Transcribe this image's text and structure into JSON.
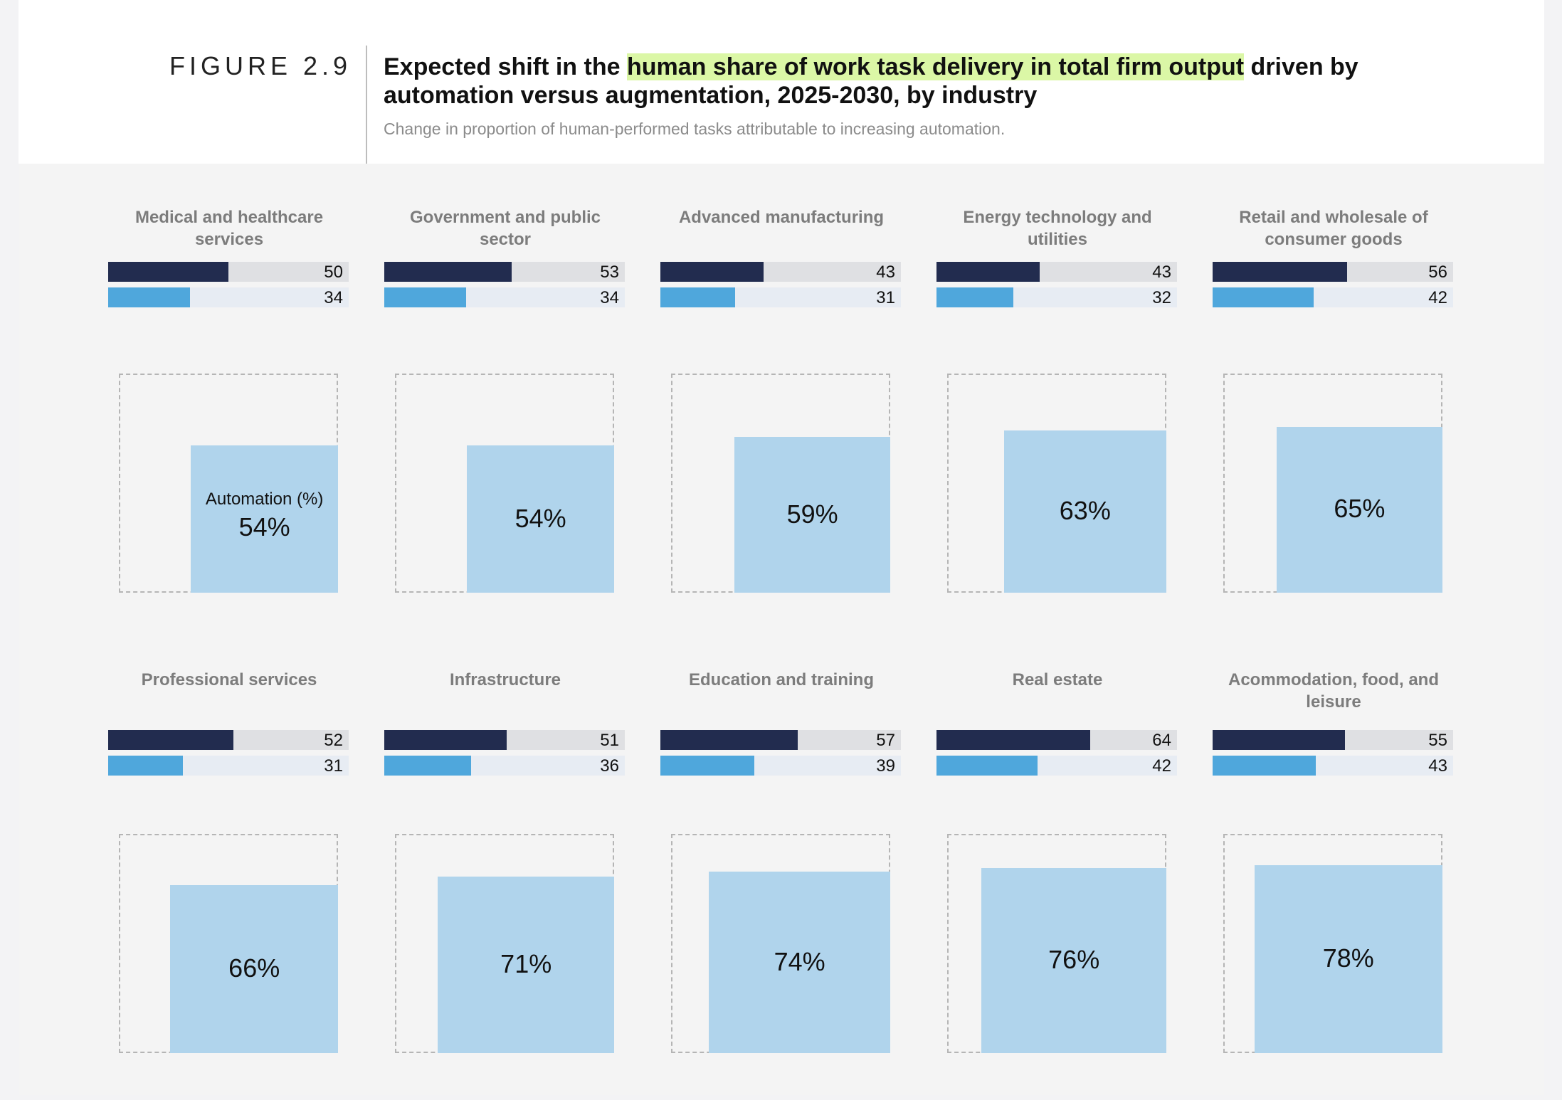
{
  "figure": {
    "label": "FIGURE 2.9",
    "title_before": "Expected shift in the ",
    "title_highlight": "human share of work task delivery in total firm output",
    "title_after": " driven by automation versus augmentation, 2025-2030, by industry",
    "subtitle": "Change in proportion of human-performed tasks attributable to increasing automation."
  },
  "colors": {
    "bar_dark": "#222c4f",
    "bar_dark_track": "#dfe0e3",
    "bar_light": "#4fa7dc",
    "bar_light_track": "#e7ecf3",
    "box_fill": "#b0d4ec",
    "highlight": "#dbf7a6"
  },
  "chart_data": {
    "type": "bar",
    "automation_caption": "Automation (%)",
    "bar_max": 100,
    "industries": [
      {
        "name": "Medical and healthcare services",
        "dark": 50,
        "light": 34,
        "automation": 54,
        "automation_label": "54%"
      },
      {
        "name": "Government and public sector",
        "dark": 53,
        "light": 34,
        "automation": 54,
        "automation_label": "54%"
      },
      {
        "name": "Advanced manufacturing",
        "dark": 43,
        "light": 31,
        "automation": 59,
        "automation_label": "59%"
      },
      {
        "name": "Energy technology and utilities",
        "dark": 43,
        "light": 32,
        "automation": 63,
        "automation_label": "63%"
      },
      {
        "name": "Retail and wholesale of consumer goods",
        "dark": 56,
        "light": 42,
        "automation": 65,
        "automation_label": "65%"
      },
      {
        "name": "Professional services",
        "dark": 52,
        "light": 31,
        "automation": 66,
        "automation_label": "66%"
      },
      {
        "name": "Infrastructure",
        "dark": 51,
        "light": 36,
        "automation": 71,
        "automation_label": "71%"
      },
      {
        "name": "Education and training",
        "dark": 57,
        "light": 39,
        "automation": 74,
        "automation_label": "74%"
      },
      {
        "name": "Real estate",
        "dark": 64,
        "light": 42,
        "automation": 76,
        "automation_label": "76%"
      },
      {
        "name": "Acommodation, food, and leisure",
        "dark": 55,
        "light": 43,
        "automation": 78,
        "automation_label": "78%"
      }
    ]
  }
}
